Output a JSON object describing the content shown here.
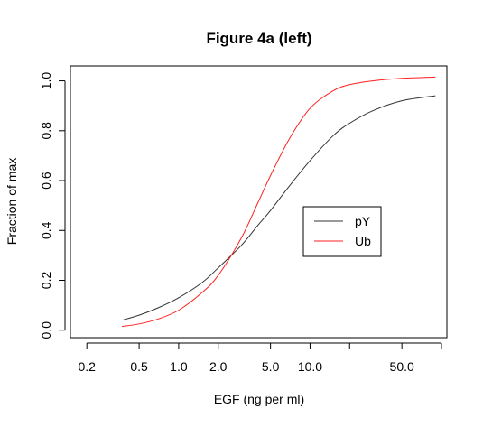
{
  "chart_data": {
    "type": "line",
    "title": "Figure 4a (left)",
    "xlabel": "EGF (ng per ml)",
    "ylabel": "Fraction of max",
    "x_scale": "log",
    "xlim": [
      0.15,
      110
    ],
    "ylim": [
      -0.03,
      1.06
    ],
    "x_ticks": [
      0.2,
      0.5,
      1.0,
      2.0,
      5.0,
      10.0,
      20.0,
      50.0,
      100.0
    ],
    "x_tick_labels": [
      "0.2",
      "0.5",
      "1.0",
      "2.0",
      "5.0",
      "10.0",
      "",
      "50.0",
      ""
    ],
    "y_ticks": [
      0.0,
      0.2,
      0.4,
      0.6,
      0.8,
      1.0
    ],
    "y_tick_labels": [
      "0.0",
      "0.2",
      "0.4",
      "0.6",
      "0.8",
      "1.0"
    ],
    "grid": false,
    "legend_position": "center-right",
    "series": [
      {
        "name": "pY",
        "color": "#333333",
        "x": [
          0.37,
          0.5,
          0.7,
          1.0,
          1.5,
          2.0,
          3.0,
          4.0,
          5.0,
          7.0,
          10.0,
          15.0,
          20.0,
          30.0,
          50.0,
          90.0
        ],
        "y": [
          0.04,
          0.06,
          0.09,
          0.13,
          0.19,
          0.25,
          0.34,
          0.42,
          0.48,
          0.58,
          0.68,
          0.78,
          0.83,
          0.88,
          0.92,
          0.94
        ]
      },
      {
        "name": "Ub",
        "color": "#ff2020",
        "x": [
          0.37,
          0.5,
          0.7,
          1.0,
          1.5,
          2.0,
          3.0,
          4.0,
          5.0,
          7.0,
          10.0,
          15.0,
          20.0,
          30.0,
          50.0,
          90.0
        ],
        "y": [
          0.015,
          0.025,
          0.045,
          0.08,
          0.15,
          0.22,
          0.37,
          0.51,
          0.62,
          0.77,
          0.89,
          0.96,
          0.985,
          1.0,
          1.01,
          1.015
        ]
      }
    ]
  }
}
